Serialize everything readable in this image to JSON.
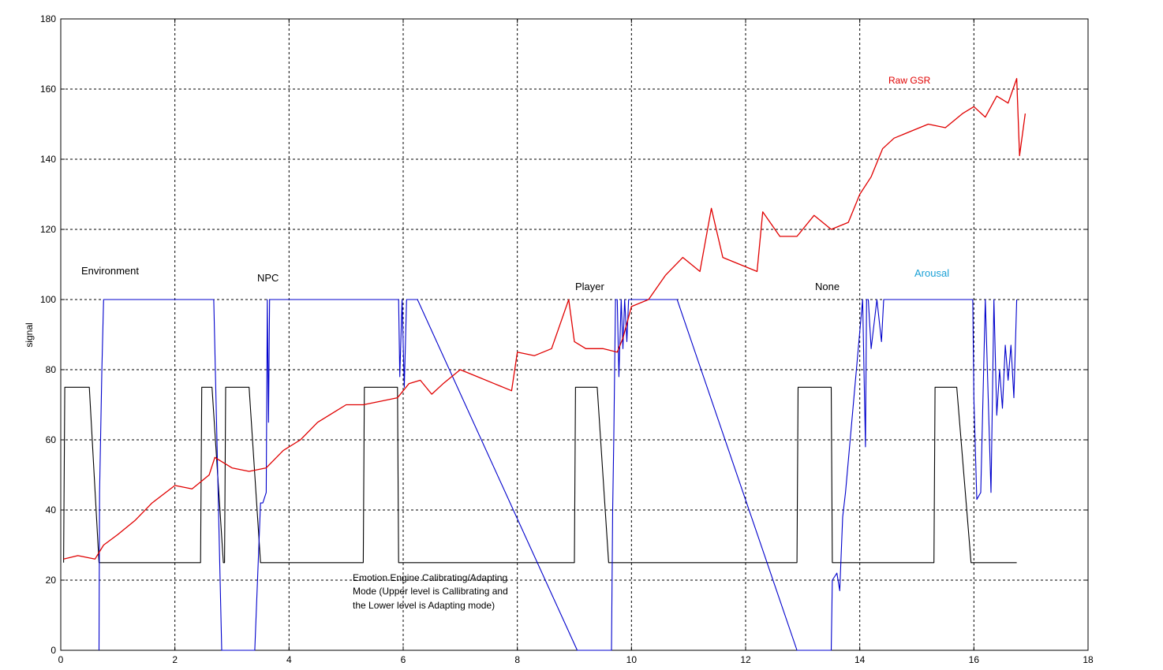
{
  "chart_data": {
    "type": "line",
    "title": "",
    "xlabel": "",
    "ylabel": "signal",
    "xlim": [
      0,
      18
    ],
    "ylim": [
      0,
      180
    ],
    "xticks": [
      "0",
      "2",
      "4",
      "6",
      "8",
      "10",
      "12",
      "14",
      "16",
      "18"
    ],
    "yticks": [
      "0",
      "20",
      "40",
      "60",
      "80",
      "100",
      "120",
      "140",
      "160",
      "180"
    ],
    "grid": true,
    "legend": "none",
    "colors": {
      "raw_gsr": "#e00000",
      "arousal": "#0000cc",
      "mode": "#000000"
    },
    "series": [
      {
        "name": "Raw GSR",
        "x": [
          0.05,
          0.3,
          0.6,
          0.75,
          1.0,
          1.3,
          1.6,
          2.0,
          2.3,
          2.6,
          2.7,
          3.0,
          3.3,
          3.6,
          3.9,
          4.2,
          4.5,
          4.8,
          5.0,
          5.3,
          5.6,
          5.9,
          6.1,
          6.3,
          6.5,
          6.7,
          7.0,
          7.3,
          7.6,
          7.9,
          8.0,
          8.3,
          8.6,
          8.9,
          9.0,
          9.2,
          9.5,
          9.75,
          9.85,
          10.0,
          10.3,
          10.6,
          10.9,
          11.2,
          11.4,
          11.6,
          11.9,
          12.2,
          12.3,
          12.6,
          12.9,
          13.2,
          13.5,
          13.8,
          14.0,
          14.2,
          14.4,
          14.6,
          14.9,
          15.2,
          15.5,
          15.8,
          16.0,
          16.2,
          16.4,
          16.6,
          16.75,
          16.8,
          16.9
        ],
        "y": [
          26,
          27,
          26,
          30,
          33,
          37,
          42,
          47,
          46,
          50,
          55,
          52,
          51,
          52,
          57,
          60,
          65,
          68,
          70,
          70,
          71,
          72,
          76,
          77,
          73,
          76,
          80,
          78,
          76,
          74,
          85,
          84,
          86,
          100,
          88,
          86,
          86,
          85,
          89,
          98,
          100,
          107,
          112,
          108,
          126,
          112,
          110,
          108,
          125,
          118,
          118,
          124,
          120,
          122,
          130,
          135,
          143,
          146,
          148,
          150,
          149,
          153,
          155,
          152,
          158,
          156,
          163,
          141,
          153
        ]
      },
      {
        "name": "Arousal",
        "x": [
          0.67,
          0.68,
          0.72,
          0.75,
          2.68,
          2.82,
          2.9,
          3.4,
          3.5,
          3.54,
          3.6,
          3.62,
          3.64,
          3.66,
          3.68,
          3.72,
          3.75,
          5.92,
          5.94,
          5.98,
          6.02,
          6.06,
          6.1,
          6.25,
          9.05,
          9.65,
          9.67,
          9.69,
          9.72,
          9.75,
          9.78,
          9.82,
          9.85,
          9.88,
          9.92,
          9.95,
          10.0,
          10.8,
          12.9,
          13.5,
          13.52,
          13.6,
          13.65,
          13.7,
          13.75,
          14.05,
          14.1,
          14.12,
          14.15,
          14.2,
          14.3,
          14.38,
          14.42,
          14.45,
          15.98,
          16.0,
          16.05,
          16.12,
          16.2,
          16.3,
          16.35,
          16.4,
          16.45,
          16.5,
          16.55,
          16.6,
          16.65,
          16.7,
          16.75
        ],
        "y": [
          0,
          45,
          80,
          100,
          100,
          0,
          0,
          0,
          42,
          42,
          45,
          100,
          65,
          100,
          100,
          100,
          100,
          100,
          78,
          100,
          75,
          100,
          100,
          100,
          0,
          0,
          40,
          60,
          100,
          100,
          78,
          100,
          86,
          100,
          88,
          100,
          100,
          100,
          0,
          0,
          20,
          22,
          17,
          38,
          45,
          100,
          58,
          100,
          100,
          86,
          100,
          88,
          100,
          100,
          100,
          72,
          43,
          45,
          100,
          45,
          100,
          67,
          80,
          69,
          87,
          77,
          87,
          72,
          100
        ]
      },
      {
        "name": "",
        "x": [
          0.05,
          0.07,
          0.5,
          0.67,
          2.45,
          2.47,
          2.65,
          2.85,
          2.87,
          2.89,
          2.91,
          3.3,
          3.5,
          5.3,
          5.32,
          5.9,
          5.92,
          9.0,
          9.02,
          9.4,
          9.6,
          12.9,
          12.92,
          13.5,
          13.52,
          15.3,
          15.32,
          15.7,
          15.95,
          16.75
        ],
        "y": [
          25,
          75,
          75,
          25,
          25,
          75,
          75,
          25,
          25,
          75,
          75,
          75,
          25,
          25,
          75,
          75,
          25,
          25,
          75,
          75,
          25,
          25,
          75,
          75,
          25,
          25,
          75,
          75,
          25,
          25
        ]
      }
    ],
    "annotations": {
      "environment": "Environment",
      "npc": "NPC",
      "player": "Player",
      "none": "None",
      "raw_gsr": "Raw GSR",
      "arousal": "Arousal",
      "mode_line1": "Emotion Engine Calibrating/Adapting",
      "mode_line2": "Mode (Upper level is Callibrating and",
      "mode_line3": "the Lower level is Adapting mode)"
    }
  }
}
